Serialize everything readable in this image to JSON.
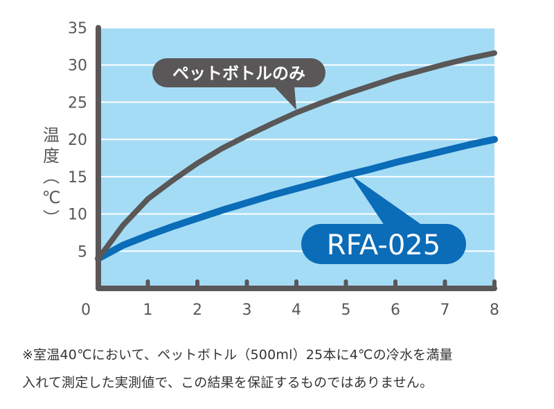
{
  "chart_data": {
    "type": "line",
    "xlim": [
      0,
      8
    ],
    "ylim": [
      0,
      35
    ],
    "x_ticks": [
      0,
      1,
      2,
      3,
      4,
      5,
      6,
      7,
      8
    ],
    "y_ticks": [
      5,
      10,
      15,
      20,
      25,
      30,
      35
    ],
    "x_zero_label": "0",
    "ylabel": "温度（℃）",
    "xlabel": "",
    "grid": true,
    "colors": {
      "plot_background": "#A5DCF5",
      "grid": "#FFFFFF",
      "axis": "#595757",
      "tick_label": "#595757",
      "callout_text": "#FFFFFF"
    },
    "series": [
      {
        "name": "ペットボトルのみ",
        "color": "#595757",
        "x": [
          0,
          0.5,
          1,
          1.5,
          2,
          2.5,
          3,
          3.5,
          4,
          4.5,
          5,
          5.5,
          6,
          6.5,
          7,
          7.5,
          8
        ],
        "y": [
          4,
          8.5,
          12,
          14.5,
          16.8,
          18.8,
          20.5,
          22.1,
          23.6,
          24.9,
          26.1,
          27.2,
          28.3,
          29.2,
          30.1,
          30.9,
          31.6
        ]
      },
      {
        "name": "RFA-025",
        "color": "#0B6CB8",
        "x": [
          0,
          0.5,
          1,
          1.5,
          2,
          2.5,
          3,
          3.5,
          4,
          4.5,
          5,
          5.5,
          6,
          6.5,
          7,
          7.5,
          8
        ],
        "y": [
          4,
          5.8,
          7.1,
          8.3,
          9.4,
          10.5,
          11.5,
          12.5,
          13.4,
          14.3,
          15.2,
          16.0,
          16.9,
          17.7,
          18.5,
          19.3,
          20.0
        ]
      }
    ]
  },
  "footnote": {
    "line1": "※室温40℃において、ペットボトル（500ml）25本に4℃の冷水を満量",
    "line2": "入れて測定した実測値で、この結果を保証するものではありません。"
  }
}
